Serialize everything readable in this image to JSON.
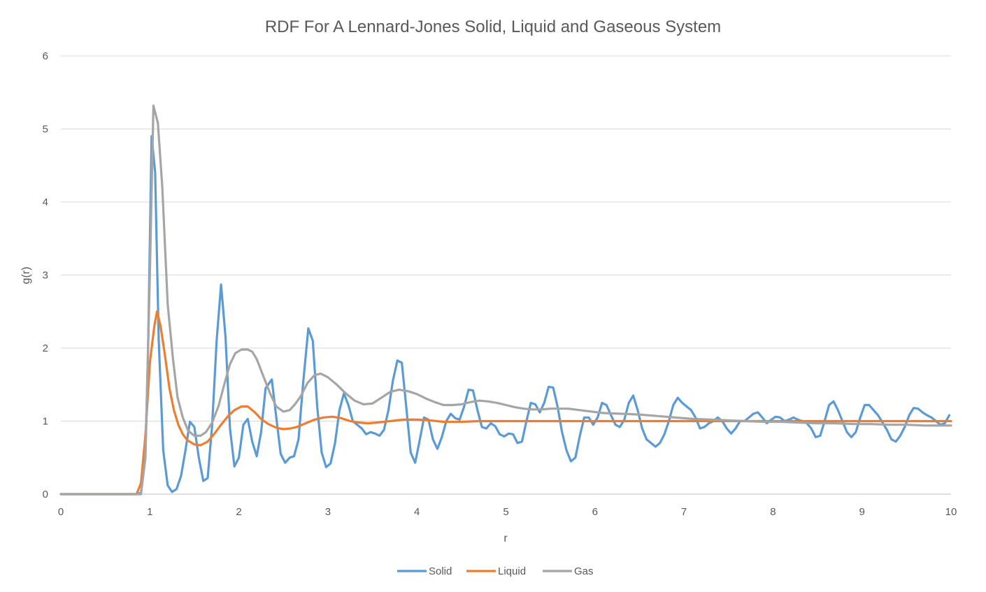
{
  "chart_data": {
    "type": "line",
    "title": "RDF For A Lennard-Jones Solid, Liquid and Gaseous System",
    "xlabel": "r",
    "ylabel": "g(r)",
    "xlim": [
      0,
      10
    ],
    "ylim": [
      0,
      6
    ],
    "xticks": [
      "0",
      "1",
      "2",
      "3",
      "4",
      "5",
      "6",
      "7",
      "8",
      "9",
      "10"
    ],
    "yticks": [
      "0",
      "1",
      "2",
      "3",
      "4",
      "5",
      "6"
    ],
    "grid": "horizontal",
    "legend": "bottom",
    "series": [
      {
        "name": "Solid",
        "color": "#5b9bd5",
        "points": [
          [
            0,
            0
          ],
          [
            0.85,
            0
          ],
          [
            0.9,
            0.02
          ],
          [
            0.95,
            0.5
          ],
          [
            0.98,
            2.0
          ],
          [
            1.02,
            4.9
          ],
          [
            1.06,
            4.4
          ],
          [
            1.1,
            2.1
          ],
          [
            1.15,
            0.6
          ],
          [
            1.2,
            0.12
          ],
          [
            1.25,
            0.03
          ],
          [
            1.3,
            0.07
          ],
          [
            1.35,
            0.25
          ],
          [
            1.4,
            0.6
          ],
          [
            1.45,
            0.99
          ],
          [
            1.5,
            0.92
          ],
          [
            1.55,
            0.5
          ],
          [
            1.6,
            0.18
          ],
          [
            1.65,
            0.22
          ],
          [
            1.7,
            0.95
          ],
          [
            1.75,
            2.1
          ],
          [
            1.8,
            2.87
          ],
          [
            1.85,
            2.15
          ],
          [
            1.9,
            0.9
          ],
          [
            1.95,
            0.38
          ],
          [
            2.0,
            0.5
          ],
          [
            2.05,
            0.95
          ],
          [
            2.1,
            1.03
          ],
          [
            2.15,
            0.72
          ],
          [
            2.2,
            0.52
          ],
          [
            2.25,
            0.85
          ],
          [
            2.3,
            1.45
          ],
          [
            2.37,
            1.57
          ],
          [
            2.42,
            1.05
          ],
          [
            2.47,
            0.55
          ],
          [
            2.52,
            0.43
          ],
          [
            2.57,
            0.5
          ],
          [
            2.62,
            0.52
          ],
          [
            2.67,
            0.75
          ],
          [
            2.72,
            1.5
          ],
          [
            2.78,
            2.27
          ],
          [
            2.83,
            2.1
          ],
          [
            2.88,
            1.2
          ],
          [
            2.93,
            0.57
          ],
          [
            2.98,
            0.37
          ],
          [
            3.03,
            0.42
          ],
          [
            3.08,
            0.7
          ],
          [
            3.13,
            1.15
          ],
          [
            3.18,
            1.38
          ],
          [
            3.23,
            1.22
          ],
          [
            3.28,
            1.0
          ],
          [
            3.33,
            0.95
          ],
          [
            3.38,
            0.9
          ],
          [
            3.43,
            0.82
          ],
          [
            3.48,
            0.85
          ],
          [
            3.53,
            0.83
          ],
          [
            3.58,
            0.8
          ],
          [
            3.63,
            0.88
          ],
          [
            3.68,
            1.15
          ],
          [
            3.73,
            1.55
          ],
          [
            3.78,
            1.83
          ],
          [
            3.83,
            1.8
          ],
          [
            3.88,
            1.2
          ],
          [
            3.93,
            0.57
          ],
          [
            3.98,
            0.43
          ],
          [
            4.03,
            0.73
          ],
          [
            4.08,
            1.05
          ],
          [
            4.13,
            1.02
          ],
          [
            4.18,
            0.75
          ],
          [
            4.23,
            0.62
          ],
          [
            4.28,
            0.78
          ],
          [
            4.33,
            1.0
          ],
          [
            4.38,
            1.1
          ],
          [
            4.43,
            1.04
          ],
          [
            4.48,
            1.02
          ],
          [
            4.53,
            1.2
          ],
          [
            4.58,
            1.43
          ],
          [
            4.63,
            1.42
          ],
          [
            4.68,
            1.15
          ],
          [
            4.73,
            0.92
          ],
          [
            4.78,
            0.9
          ],
          [
            4.83,
            0.97
          ],
          [
            4.88,
            0.93
          ],
          [
            4.93,
            0.82
          ],
          [
            4.98,
            0.79
          ],
          [
            5.03,
            0.83
          ],
          [
            5.08,
            0.82
          ],
          [
            5.13,
            0.7
          ],
          [
            5.18,
            0.72
          ],
          [
            5.23,
            1.0
          ],
          [
            5.28,
            1.25
          ],
          [
            5.33,
            1.23
          ],
          [
            5.38,
            1.12
          ],
          [
            5.43,
            1.25
          ],
          [
            5.48,
            1.47
          ],
          [
            5.53,
            1.46
          ],
          [
            5.58,
            1.2
          ],
          [
            5.63,
            0.85
          ],
          [
            5.68,
            0.6
          ],
          [
            5.73,
            0.45
          ],
          [
            5.78,
            0.5
          ],
          [
            5.83,
            0.8
          ],
          [
            5.88,
            1.05
          ],
          [
            5.93,
            1.05
          ],
          [
            5.98,
            0.95
          ],
          [
            6.03,
            1.05
          ],
          [
            6.08,
            1.25
          ],
          [
            6.13,
            1.22
          ],
          [
            6.18,
            1.08
          ],
          [
            6.23,
            0.95
          ],
          [
            6.28,
            0.92
          ],
          [
            6.33,
            1.02
          ],
          [
            6.38,
            1.25
          ],
          [
            6.43,
            1.35
          ],
          [
            6.48,
            1.15
          ],
          [
            6.53,
            0.9
          ],
          [
            6.58,
            0.75
          ],
          [
            6.63,
            0.7
          ],
          [
            6.68,
            0.65
          ],
          [
            6.73,
            0.7
          ],
          [
            6.78,
            0.82
          ],
          [
            6.83,
            1.0
          ],
          [
            6.88,
            1.22
          ],
          [
            6.93,
            1.32
          ],
          [
            6.98,
            1.25
          ],
          [
            7.03,
            1.2
          ],
          [
            7.08,
            1.15
          ],
          [
            7.13,
            1.05
          ],
          [
            7.18,
            0.9
          ],
          [
            7.23,
            0.92
          ],
          [
            7.28,
            0.97
          ],
          [
            7.33,
            1.0
          ],
          [
            7.38,
            1.05
          ],
          [
            7.43,
            1.0
          ],
          [
            7.48,
            0.9
          ],
          [
            7.53,
            0.83
          ],
          [
            7.58,
            0.9
          ],
          [
            7.63,
            1.0
          ],
          [
            7.68,
            1.0
          ],
          [
            7.73,
            1.05
          ],
          [
            7.78,
            1.1
          ],
          [
            7.83,
            1.12
          ],
          [
            7.88,
            1.05
          ],
          [
            7.93,
            0.97
          ],
          [
            7.98,
            1.02
          ],
          [
            8.03,
            1.06
          ],
          [
            8.08,
            1.05
          ],
          [
            8.13,
            1.0
          ],
          [
            8.18,
            1.02
          ],
          [
            8.23,
            1.05
          ],
          [
            8.28,
            1.02
          ],
          [
            8.33,
            1.0
          ],
          [
            8.38,
            0.97
          ],
          [
            8.43,
            0.9
          ],
          [
            8.48,
            0.78
          ],
          [
            8.53,
            0.8
          ],
          [
            8.58,
            1.0
          ],
          [
            8.63,
            1.22
          ],
          [
            8.68,
            1.27
          ],
          [
            8.73,
            1.15
          ],
          [
            8.78,
            1.0
          ],
          [
            8.83,
            0.85
          ],
          [
            8.88,
            0.78
          ],
          [
            8.93,
            0.85
          ],
          [
            8.98,
            1.05
          ],
          [
            9.03,
            1.22
          ],
          [
            9.08,
            1.22
          ],
          [
            9.13,
            1.15
          ],
          [
            9.18,
            1.08
          ],
          [
            9.23,
            0.98
          ],
          [
            9.28,
            0.88
          ],
          [
            9.33,
            0.75
          ],
          [
            9.38,
            0.72
          ],
          [
            9.43,
            0.8
          ],
          [
            9.48,
            0.92
          ],
          [
            9.53,
            1.08
          ],
          [
            9.58,
            1.18
          ],
          [
            9.63,
            1.17
          ],
          [
            9.68,
            1.12
          ],
          [
            9.73,
            1.08
          ],
          [
            9.78,
            1.05
          ],
          [
            9.83,
            1.0
          ],
          [
            9.88,
            0.95
          ],
          [
            9.93,
            0.97
          ],
          [
            9.98,
            1.08
          ]
        ]
      },
      {
        "name": "Liquid",
        "color": "#ed7d31",
        "points": [
          [
            0,
            0
          ],
          [
            0.85,
            0
          ],
          [
            0.9,
            0.15
          ],
          [
            0.95,
            0.8
          ],
          [
            1.0,
            1.8
          ],
          [
            1.05,
            2.3
          ],
          [
            1.08,
            2.5
          ],
          [
            1.12,
            2.3
          ],
          [
            1.17,
            1.9
          ],
          [
            1.22,
            1.45
          ],
          [
            1.27,
            1.15
          ],
          [
            1.32,
            0.95
          ],
          [
            1.37,
            0.82
          ],
          [
            1.42,
            0.74
          ],
          [
            1.5,
            0.68
          ],
          [
            1.57,
            0.67
          ],
          [
            1.65,
            0.72
          ],
          [
            1.72,
            0.82
          ],
          [
            1.8,
            0.95
          ],
          [
            1.88,
            1.07
          ],
          [
            1.95,
            1.15
          ],
          [
            2.03,
            1.2
          ],
          [
            2.1,
            1.2
          ],
          [
            2.18,
            1.12
          ],
          [
            2.25,
            1.03
          ],
          [
            2.33,
            0.96
          ],
          [
            2.42,
            0.91
          ],
          [
            2.5,
            0.89
          ],
          [
            2.58,
            0.9
          ],
          [
            2.65,
            0.92
          ],
          [
            2.75,
            0.97
          ],
          [
            2.85,
            1.02
          ],
          [
            2.95,
            1.05
          ],
          [
            3.05,
            1.06
          ],
          [
            3.15,
            1.04
          ],
          [
            3.25,
            1.0
          ],
          [
            3.35,
            0.98
          ],
          [
            3.45,
            0.97
          ],
          [
            3.55,
            0.98
          ],
          [
            3.7,
            1.0
          ],
          [
            3.85,
            1.02
          ],
          [
            4.0,
            1.02
          ],
          [
            4.15,
            1.01
          ],
          [
            4.3,
            0.99
          ],
          [
            4.5,
            0.99
          ],
          [
            4.7,
            1.0
          ],
          [
            5.0,
            1.0
          ],
          [
            6.0,
            1.0
          ],
          [
            7.0,
            1.0
          ],
          [
            8.0,
            1.0
          ],
          [
            9.0,
            1.0
          ],
          [
            10.0,
            1.0
          ]
        ]
      },
      {
        "name": "Gas",
        "color": "#a5a5a5",
        "points": [
          [
            0,
            0
          ],
          [
            0.9,
            0
          ],
          [
            0.95,
            0.5
          ],
          [
            1.0,
            3.0
          ],
          [
            1.04,
            5.32
          ],
          [
            1.09,
            5.08
          ],
          [
            1.14,
            4.2
          ],
          [
            1.2,
            2.6
          ],
          [
            1.26,
            1.85
          ],
          [
            1.31,
            1.33
          ],
          [
            1.37,
            1.05
          ],
          [
            1.43,
            0.87
          ],
          [
            1.5,
            0.8
          ],
          [
            1.57,
            0.8
          ],
          [
            1.63,
            0.85
          ],
          [
            1.7,
            0.98
          ],
          [
            1.77,
            1.2
          ],
          [
            1.84,
            1.52
          ],
          [
            1.9,
            1.78
          ],
          [
            1.96,
            1.93
          ],
          [
            2.03,
            1.98
          ],
          [
            2.1,
            1.98
          ],
          [
            2.15,
            1.95
          ],
          [
            2.2,
            1.85
          ],
          [
            2.28,
            1.6
          ],
          [
            2.35,
            1.38
          ],
          [
            2.42,
            1.2
          ],
          [
            2.5,
            1.13
          ],
          [
            2.57,
            1.15
          ],
          [
            2.63,
            1.23
          ],
          [
            2.7,
            1.35
          ],
          [
            2.77,
            1.52
          ],
          [
            2.85,
            1.63
          ],
          [
            2.92,
            1.65
          ],
          [
            3.0,
            1.6
          ],
          [
            3.1,
            1.5
          ],
          [
            3.2,
            1.38
          ],
          [
            3.3,
            1.28
          ],
          [
            3.4,
            1.23
          ],
          [
            3.5,
            1.24
          ],
          [
            3.6,
            1.32
          ],
          [
            3.7,
            1.4
          ],
          [
            3.8,
            1.43
          ],
          [
            3.9,
            1.41
          ],
          [
            4.0,
            1.37
          ],
          [
            4.1,
            1.31
          ],
          [
            4.2,
            1.26
          ],
          [
            4.3,
            1.22
          ],
          [
            4.4,
            1.22
          ],
          [
            4.5,
            1.23
          ],
          [
            4.6,
            1.26
          ],
          [
            4.7,
            1.28
          ],
          [
            4.8,
            1.27
          ],
          [
            4.9,
            1.25
          ],
          [
            5.0,
            1.22
          ],
          [
            5.1,
            1.19
          ],
          [
            5.2,
            1.17
          ],
          [
            5.3,
            1.16
          ],
          [
            5.4,
            1.16
          ],
          [
            5.5,
            1.17
          ],
          [
            5.7,
            1.17
          ],
          [
            5.9,
            1.14
          ],
          [
            6.1,
            1.11
          ],
          [
            6.3,
            1.1
          ],
          [
            6.5,
            1.09
          ],
          [
            6.7,
            1.07
          ],
          [
            6.9,
            1.05
          ],
          [
            7.1,
            1.03
          ],
          [
            7.3,
            1.02
          ],
          [
            7.5,
            1.01
          ],
          [
            7.7,
            1.0
          ],
          [
            7.9,
            0.99
          ],
          [
            8.1,
            0.99
          ],
          [
            8.3,
            0.98
          ],
          [
            8.5,
            0.97
          ],
          [
            8.7,
            0.97
          ],
          [
            8.9,
            0.96
          ],
          [
            9.1,
            0.96
          ],
          [
            9.3,
            0.95
          ],
          [
            9.5,
            0.95
          ],
          [
            9.7,
            0.94
          ],
          [
            9.9,
            0.94
          ],
          [
            10.0,
            0.94
          ]
        ]
      }
    ]
  }
}
